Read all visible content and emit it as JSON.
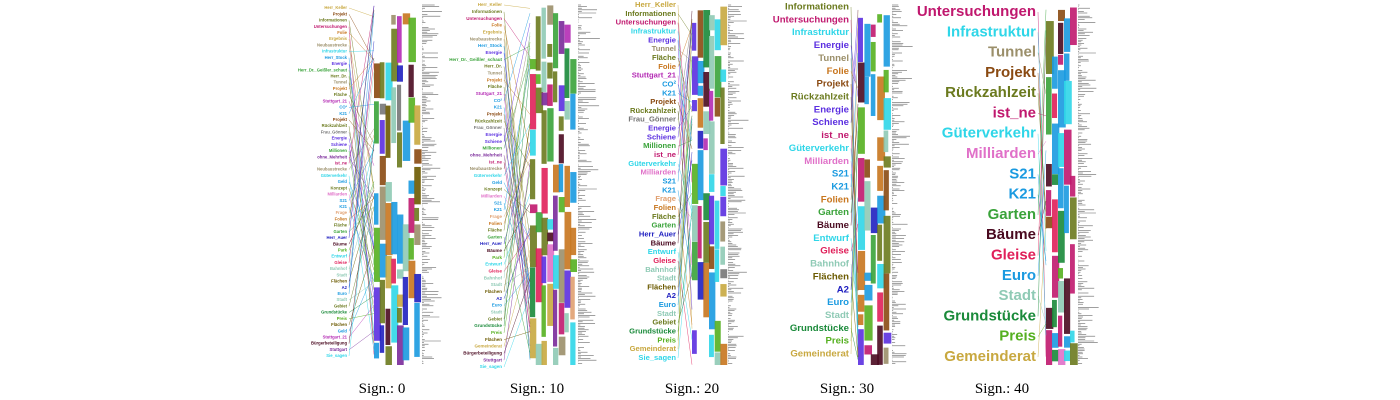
{
  "panels": [
    {
      "caption": "Sign.: 0",
      "labels": [
        {
          "text": "Herr_Keller",
          "color": "#c8a840"
        },
        {
          "text": "Projekt",
          "color": "#8a4a12"
        },
        {
          "text": "Informationen",
          "color": "#6b7a1e"
        },
        {
          "text": "Untersuchungen",
          "color": "#c0186e"
        },
        {
          "text": "Folie",
          "color": "#c8761e"
        },
        {
          "text": "Ergebnis",
          "color": "#c8a840"
        },
        {
          "text": "Neubaustrecke",
          "color": "#9b8f6a"
        },
        {
          "text": "Infrastruktur",
          "color": "#2fd6e8"
        },
        {
          "text": "Herr_Stock",
          "color": "#1a9ae0"
        },
        {
          "text": "Energie",
          "color": "#5b2fe0"
        },
        {
          "text": "Herr_Dr._Geißler_schaut",
          "color": "#3aa33a"
        },
        {
          "text": "Herr_Dr.",
          "color": "#6b7a1e"
        },
        {
          "text": "Tunnel",
          "color": "#9b8f6a"
        },
        {
          "text": "Projekt",
          "color": "#c8761e"
        },
        {
          "text": "Fläche",
          "color": "#6b7a1e"
        },
        {
          "text": "Stuttgart_21",
          "color": "#b42bb4"
        },
        {
          "text": "CO²",
          "color": "#1a9ae0"
        },
        {
          "text": "K21",
          "color": "#1a9ae0"
        },
        {
          "text": "Projekt",
          "color": "#8a4a12"
        },
        {
          "text": "Rückzahlzeit",
          "color": "#6b7a1e"
        },
        {
          "text": "Frau_Gönner",
          "color": "#777777"
        },
        {
          "text": "Energie",
          "color": "#5b2fe0"
        },
        {
          "text": "Schiene",
          "color": "#5b2fe0"
        },
        {
          "text": "Millionen",
          "color": "#3aa33a"
        },
        {
          "text": "ohne_Mehrheit",
          "color": "#7a2a9a"
        },
        {
          "text": "ist_ne",
          "color": "#c0186e"
        },
        {
          "text": "Neubaustrecke",
          "color": "#9b8f6a"
        },
        {
          "text": "Güterverkehr",
          "color": "#2fd6e8"
        },
        {
          "text": "Geld",
          "color": "#1a9ae0"
        },
        {
          "text": "Konzept",
          "color": "#6b7a1e"
        },
        {
          "text": "Milliarden",
          "color": "#e070c8"
        },
        {
          "text": "S21",
          "color": "#1a9ae0"
        },
        {
          "text": "K21",
          "color": "#1a9ae0"
        },
        {
          "text": "Frage",
          "color": "#e0a070"
        },
        {
          "text": "Folien",
          "color": "#c8761e"
        },
        {
          "text": "Fläche",
          "color": "#6b7a1e"
        },
        {
          "text": "Garten",
          "color": "#3aa33a"
        },
        {
          "text": "Herr_Auer",
          "color": "#2020c0"
        },
        {
          "text": "Bäume",
          "color": "#4a0a20"
        },
        {
          "text": "Park",
          "color": "#55b020"
        },
        {
          "text": "Entwurf",
          "color": "#2fd6e8"
        },
        {
          "text": "Gleise",
          "color": "#e0205a"
        },
        {
          "text": "Bahnhof",
          "color": "#8fcab5"
        },
        {
          "text": "Stadt",
          "color": "#8fcab5"
        },
        {
          "text": "Flächen",
          "color": "#6b5a00"
        },
        {
          "text": "A2",
          "color": "#2020c0"
        },
        {
          "text": "Euro",
          "color": "#1a9ae0"
        },
        {
          "text": "Stadt",
          "color": "#8fcab5"
        },
        {
          "text": "Gebiet",
          "color": "#6b7a1e"
        },
        {
          "text": "Grundstücke",
          "color": "#1a8a3a"
        },
        {
          "text": "Preis",
          "color": "#55b020"
        },
        {
          "text": "Flächen",
          "color": "#6b5a00"
        },
        {
          "text": "Geld",
          "color": "#1a9ae0"
        },
        {
          "text": "Stuttgart_21",
          "color": "#b42bb4"
        },
        {
          "text": "Bürgerbeteiligung",
          "color": "#4a0a20"
        },
        {
          "text": "Stuttgart",
          "color": "#7a2a9a"
        },
        {
          "text": "Sie_sagen",
          "color": "#2fd6e8"
        }
      ]
    },
    {
      "caption": "Sign.: 10",
      "labels": [
        {
          "text": "Herr_Keller",
          "color": "#c8a840"
        },
        {
          "text": "Informationen",
          "color": "#6b7a1e"
        },
        {
          "text": "Untersuchungen",
          "color": "#c0186e"
        },
        {
          "text": "Folie",
          "color": "#c8761e"
        },
        {
          "text": "Ergebnis",
          "color": "#c8a840"
        },
        {
          "text": "Neubaustrecke",
          "color": "#9b8f6a"
        },
        {
          "text": "Herr_Stock",
          "color": "#1a9ae0"
        },
        {
          "text": "Energie",
          "color": "#5b2fe0"
        },
        {
          "text": "Herr_Dr._Geißler_schaut",
          "color": "#3aa33a"
        },
        {
          "text": "Herr_Dr.",
          "color": "#6b7a1e"
        },
        {
          "text": "Tunnel",
          "color": "#9b8f6a"
        },
        {
          "text": "Projekt",
          "color": "#c8761e"
        },
        {
          "text": "Fläche",
          "color": "#6b7a1e"
        },
        {
          "text": "Stuttgart_21",
          "color": "#b42bb4"
        },
        {
          "text": "CO²",
          "color": "#1a9ae0"
        },
        {
          "text": "K21",
          "color": "#1a9ae0"
        },
        {
          "text": "Projekt",
          "color": "#8a4a12"
        },
        {
          "text": "Rückzahlzeit",
          "color": "#6b7a1e"
        },
        {
          "text": "Frau_Gönner",
          "color": "#777777"
        },
        {
          "text": "Energie",
          "color": "#5b2fe0"
        },
        {
          "text": "Schiene",
          "color": "#5b2fe0"
        },
        {
          "text": "Millionen",
          "color": "#3aa33a"
        },
        {
          "text": "ohne_Mehrheit",
          "color": "#7a2a9a"
        },
        {
          "text": "ist_ne",
          "color": "#c0186e"
        },
        {
          "text": "Neubaustrecke",
          "color": "#9b8f6a"
        },
        {
          "text": "Güterverkehr",
          "color": "#2fd6e8"
        },
        {
          "text": "Geld",
          "color": "#1a9ae0"
        },
        {
          "text": "Konzept",
          "color": "#6b7a1e"
        },
        {
          "text": "Milliarden",
          "color": "#e070c8"
        },
        {
          "text": "S21",
          "color": "#1a9ae0"
        },
        {
          "text": "K21",
          "color": "#1a9ae0"
        },
        {
          "text": "Frage",
          "color": "#e0a070"
        },
        {
          "text": "Folien",
          "color": "#c8761e"
        },
        {
          "text": "Fläche",
          "color": "#6b7a1e"
        },
        {
          "text": "Garten",
          "color": "#3aa33a"
        },
        {
          "text": "Herr_Auer",
          "color": "#2020c0"
        },
        {
          "text": "Bäume",
          "color": "#4a0a20"
        },
        {
          "text": "Park",
          "color": "#55b020"
        },
        {
          "text": "Entwurf",
          "color": "#2fd6e8"
        },
        {
          "text": "Gleise",
          "color": "#e0205a"
        },
        {
          "text": "Bahnhof",
          "color": "#8fcab5"
        },
        {
          "text": "Stadt",
          "color": "#8fcab5"
        },
        {
          "text": "Flächen",
          "color": "#6b5a00"
        },
        {
          "text": "A2",
          "color": "#2020c0"
        },
        {
          "text": "Euro",
          "color": "#1a9ae0"
        },
        {
          "text": "Stadt",
          "color": "#8fcab5"
        },
        {
          "text": "Gebiet",
          "color": "#6b7a1e"
        },
        {
          "text": "Grundstücke",
          "color": "#1a8a3a"
        },
        {
          "text": "Preis",
          "color": "#55b020"
        },
        {
          "text": "Flächen",
          "color": "#6b5a00"
        },
        {
          "text": "Gemeinderat",
          "color": "#c8a840"
        },
        {
          "text": "Bürgerbeteiligung",
          "color": "#4a0a20"
        },
        {
          "text": "Stuttgart",
          "color": "#7a2a9a"
        },
        {
          "text": "Sie_sagen",
          "color": "#2fd6e8"
        }
      ]
    },
    {
      "caption": "Sign.: 20",
      "labels": [
        {
          "text": "Herr_Keller",
          "color": "#c8a840"
        },
        {
          "text": "Informationen",
          "color": "#6b7a1e"
        },
        {
          "text": "Untersuchungen",
          "color": "#c0186e"
        },
        {
          "text": "Infrastruktur",
          "color": "#2fd6e8"
        },
        {
          "text": "Energie",
          "color": "#5b2fe0"
        },
        {
          "text": "Tunnel",
          "color": "#9b8f6a"
        },
        {
          "text": "Fläche",
          "color": "#6b7a1e"
        },
        {
          "text": "Folie",
          "color": "#c8761e"
        },
        {
          "text": "Stuttgart_21",
          "color": "#b42bb4"
        },
        {
          "text": "CO²",
          "color": "#1a9ae0"
        },
        {
          "text": "K21",
          "color": "#1a9ae0"
        },
        {
          "text": "Projekt",
          "color": "#8a4a12"
        },
        {
          "text": "Rückzahlzeit",
          "color": "#6b7a1e"
        },
        {
          "text": "Frau_Gönner",
          "color": "#777777"
        },
        {
          "text": "Energie",
          "color": "#5b2fe0"
        },
        {
          "text": "Schiene",
          "color": "#5b2fe0"
        },
        {
          "text": "Millionen",
          "color": "#3aa33a"
        },
        {
          "text": "ist_ne",
          "color": "#c0186e"
        },
        {
          "text": "Güterverkehr",
          "color": "#2fd6e8"
        },
        {
          "text": "Milliarden",
          "color": "#e070c8"
        },
        {
          "text": "S21",
          "color": "#1a9ae0"
        },
        {
          "text": "K21",
          "color": "#1a9ae0"
        },
        {
          "text": "Frage",
          "color": "#e0a070"
        },
        {
          "text": "Folien",
          "color": "#c8761e"
        },
        {
          "text": "Fläche",
          "color": "#6b7a1e"
        },
        {
          "text": "Garten",
          "color": "#3aa33a"
        },
        {
          "text": "Herr_Auer",
          "color": "#2020c0"
        },
        {
          "text": "Bäume",
          "color": "#4a0a20"
        },
        {
          "text": "Entwurf",
          "color": "#2fd6e8"
        },
        {
          "text": "Gleise",
          "color": "#e0205a"
        },
        {
          "text": "Bahnhof",
          "color": "#8fcab5"
        },
        {
          "text": "Stadt",
          "color": "#8fcab5"
        },
        {
          "text": "Flächen",
          "color": "#6b5a00"
        },
        {
          "text": "A2",
          "color": "#2020c0"
        },
        {
          "text": "Euro",
          "color": "#1a9ae0"
        },
        {
          "text": "Stadt",
          "color": "#8fcab5"
        },
        {
          "text": "Gebiet",
          "color": "#6b7a1e"
        },
        {
          "text": "Grundstücke",
          "color": "#1a8a3a"
        },
        {
          "text": "Preis",
          "color": "#55b020"
        },
        {
          "text": "Gemeinderat",
          "color": "#c8a840"
        },
        {
          "text": "Sie_sagen",
          "color": "#2fd6e8"
        }
      ]
    },
    {
      "caption": "Sign.: 30",
      "labels": [
        {
          "text": "Informationen",
          "color": "#6b7a1e"
        },
        {
          "text": "Untersuchungen",
          "color": "#c0186e"
        },
        {
          "text": "Infrastruktur",
          "color": "#2fd6e8"
        },
        {
          "text": "Energie",
          "color": "#5b2fe0"
        },
        {
          "text": "Tunnel",
          "color": "#9b8f6a"
        },
        {
          "text": "Folie",
          "color": "#c8761e"
        },
        {
          "text": "Projekt",
          "color": "#8a4a12"
        },
        {
          "text": "Rückzahlzeit",
          "color": "#6b7a1e"
        },
        {
          "text": "Energie",
          "color": "#5b2fe0"
        },
        {
          "text": "Schiene",
          "color": "#5b2fe0"
        },
        {
          "text": "ist_ne",
          "color": "#c0186e"
        },
        {
          "text": "Güterverkehr",
          "color": "#2fd6e8"
        },
        {
          "text": "Milliarden",
          "color": "#e070c8"
        },
        {
          "text": "S21",
          "color": "#1a9ae0"
        },
        {
          "text": "K21",
          "color": "#1a9ae0"
        },
        {
          "text": "Folien",
          "color": "#c8761e"
        },
        {
          "text": "Garten",
          "color": "#3aa33a"
        },
        {
          "text": "Bäume",
          "color": "#4a0a20"
        },
        {
          "text": "Entwurf",
          "color": "#2fd6e8"
        },
        {
          "text": "Gleise",
          "color": "#e0205a"
        },
        {
          "text": "Bahnhof",
          "color": "#8fcab5"
        },
        {
          "text": "Flächen",
          "color": "#6b5a00"
        },
        {
          "text": "A2",
          "color": "#2020c0"
        },
        {
          "text": "Euro",
          "color": "#1a9ae0"
        },
        {
          "text": "Stadt",
          "color": "#8fcab5"
        },
        {
          "text": "Grundstücke",
          "color": "#1a8a3a"
        },
        {
          "text": "Preis",
          "color": "#55b020"
        },
        {
          "text": "Gemeinderat",
          "color": "#c8a840"
        }
      ]
    },
    {
      "caption": "Sign.: 40",
      "labels": [
        {
          "text": "Untersuchungen",
          "color": "#c0186e"
        },
        {
          "text": "Infrastruktur",
          "color": "#2fd6e8"
        },
        {
          "text": "Tunnel",
          "color": "#9b8f6a"
        },
        {
          "text": "Projekt",
          "color": "#8a4a12"
        },
        {
          "text": "Rückzahlzeit",
          "color": "#6b7a1e"
        },
        {
          "text": "ist_ne",
          "color": "#c0186e"
        },
        {
          "text": "Güterverkehr",
          "color": "#2fd6e8"
        },
        {
          "text": "Milliarden",
          "color": "#e070c8"
        },
        {
          "text": "S21",
          "color": "#1a9ae0"
        },
        {
          "text": "K21",
          "color": "#1a9ae0"
        },
        {
          "text": "Garten",
          "color": "#3aa33a"
        },
        {
          "text": "Bäume",
          "color": "#4a0a20"
        },
        {
          "text": "Gleise",
          "color": "#e0205a"
        },
        {
          "text": "Euro",
          "color": "#1a9ae0"
        },
        {
          "text": "Stadt",
          "color": "#8fcab5"
        },
        {
          "text": "Grundstücke",
          "color": "#1a8a3a"
        },
        {
          "text": "Preis",
          "color": "#55b020"
        },
        {
          "text": "Gemeinderat",
          "color": "#c8a840"
        }
      ]
    }
  ]
}
